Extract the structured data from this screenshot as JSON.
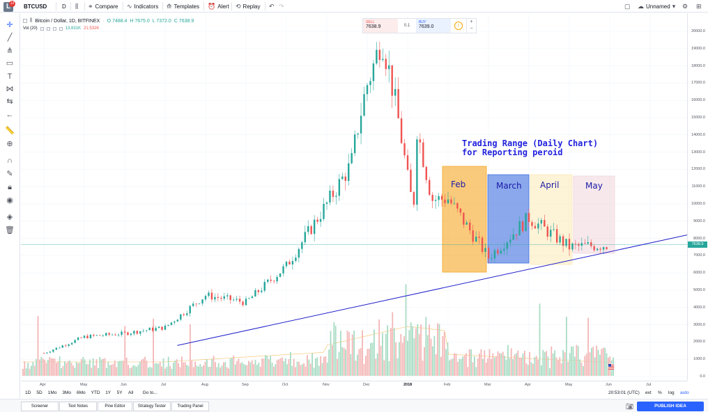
{
  "toolbar": {
    "symbol": "BTCUSD",
    "interval": "D",
    "compare": "Compare",
    "indicators": "Indicators",
    "templates": "Templates",
    "alert": "Alert",
    "replay": "Replay",
    "layout_name": "Unnamed",
    "logo_badge": "13"
  },
  "legend": {
    "title": "Bitcoin / Dollar, 1D, BITFINEX",
    "open": "O 7488.4",
    "high": "H 7675.0",
    "low": "L 7372.0",
    "close": "C 7638.9",
    "volume_label": "Vol (20)",
    "volume_value": "13.831K",
    "volume_ma": "21.532K"
  },
  "trade": {
    "sell_label": "SELL",
    "sell_price": "7638.9",
    "spread": "0.1",
    "buy_label": "BUY",
    "buy_price": "7639.0",
    "plus": "+",
    "minus": "−"
  },
  "price_axis": [
    "20000.0",
    "19000.0",
    "18000.0",
    "17000.0",
    "16000.0",
    "15000.0",
    "14000.0",
    "13000.0",
    "12000.0",
    "11000.0",
    "10000.0",
    "9000.0",
    "8000.0",
    "7000.0",
    "6000.0",
    "5000.0",
    "4000.0",
    "3000.0",
    "2000.0",
    "1000.0",
    "0.0"
  ],
  "current_price": "7638.9",
  "time_axis": [
    "Apr",
    "May",
    "Jun",
    "Jul",
    "Aug",
    "Sep",
    "Oct",
    "Nov",
    "Dec",
    "2018",
    "Feb",
    "Mar",
    "Apr",
    "May",
    "Jun",
    "Jul"
  ],
  "annotation": {
    "title_line1": "Trading Range (Daily Chart)",
    "title_line2": "for Reporting peroid",
    "months": [
      {
        "label": "Feb",
        "color": "#f5a623"
      },
      {
        "label": "March",
        "color": "#3d6ee0"
      },
      {
        "label": "April",
        "color": "#fbe9b7"
      },
      {
        "label": "May",
        "color": "#f1d6dc"
      }
    ]
  },
  "range_bar": {
    "ranges": [
      "1D",
      "5D",
      "1Mo",
      "3Mo",
      "6Mo",
      "YTD",
      "1Y",
      "5Y",
      "All"
    ],
    "goto": "Go to...",
    "clock": "20:53:01 (UTC)",
    "ext": "ext",
    "percent": "%",
    "log": "log",
    "auto": "auto"
  },
  "bottom_tabs": [
    "Screener",
    "Text Notes",
    "Pine Editor",
    "Strategy Tester",
    "Trading Panel"
  ],
  "publish": "PUBLISH IDEA",
  "colors": {
    "up": "#26a69a",
    "down": "#ef5350",
    "trendline": "#1f1fcc",
    "accent": "#2962ff"
  },
  "chart_data": {
    "type": "candlestick",
    "symbol": "Bitcoin / Dollar",
    "interval": "1D",
    "exchange": "BITFINEX",
    "ylim": [
      0,
      20500
    ],
    "monthly_closes": [
      {
        "month": "Apr 2017",
        "value": 1350
      },
      {
        "month": "May 2017",
        "value": 2300
      },
      {
        "month": "Jun 2017",
        "value": 2500
      },
      {
        "month": "Jul 2017",
        "value": 2850
      },
      {
        "month": "Aug 2017",
        "value": 4700
      },
      {
        "month": "Sep 2017",
        "value": 4300
      },
      {
        "month": "Oct 2017",
        "value": 6400
      },
      {
        "month": "Nov 2017",
        "value": 10000
      },
      {
        "month": "Dec 2017",
        "value": 13800
      },
      {
        "month": "Jan 2018",
        "value": 10200
      },
      {
        "month": "Feb 2018",
        "value": 10300
      },
      {
        "month": "Mar 2018",
        "value": 6900
      },
      {
        "month": "Apr 2018",
        "value": 9200
      },
      {
        "month": "May 2018",
        "value": 7500
      },
      {
        "month": "Jun 2018",
        "value": 7639
      }
    ],
    "peak": {
      "month": "Dec 2017",
      "value": 19700
    },
    "trendline": {
      "from": {
        "month": "Jul 2017",
        "value": 1800
      },
      "to": {
        "month": "Jul 2018",
        "value": 8200
      }
    }
  }
}
